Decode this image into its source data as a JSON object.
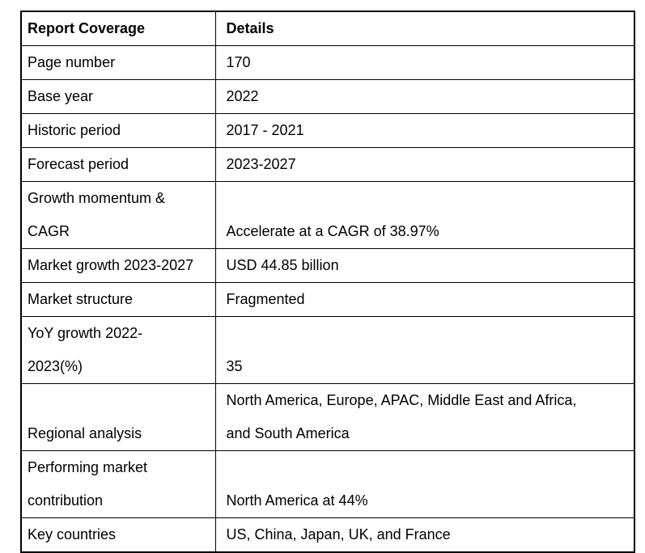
{
  "colors": {
    "background": "#ffffff",
    "border": "#000000",
    "text": "#000000"
  },
  "chart_data": {
    "type": "table",
    "title": "Report Coverage",
    "columns": [
      "Report Coverage",
      "Details"
    ],
    "rows": [
      [
        "Page number",
        "170"
      ],
      [
        "Base year",
        "2022"
      ],
      [
        "Historic period",
        "2017 - 2021"
      ],
      [
        "Forecast period",
        "2023-2027"
      ],
      [
        "Growth momentum &\nCAGR",
        "Accelerate at a CAGR of 38.97%"
      ],
      [
        "Market growth 2023-2027",
        "USD 44.85 billion"
      ],
      [
        "Market structure",
        "Fragmented"
      ],
      [
        "YoY growth 2022-\n2023(%)",
        "35"
      ],
      [
        "Regional analysis",
        "North America, Europe, APAC, Middle East and Africa,\nand South America"
      ],
      [
        "Performing market\ncontribution",
        "North America at 44%"
      ],
      [
        "Key countries",
        "US, China, Japan, UK, and France"
      ]
    ]
  }
}
